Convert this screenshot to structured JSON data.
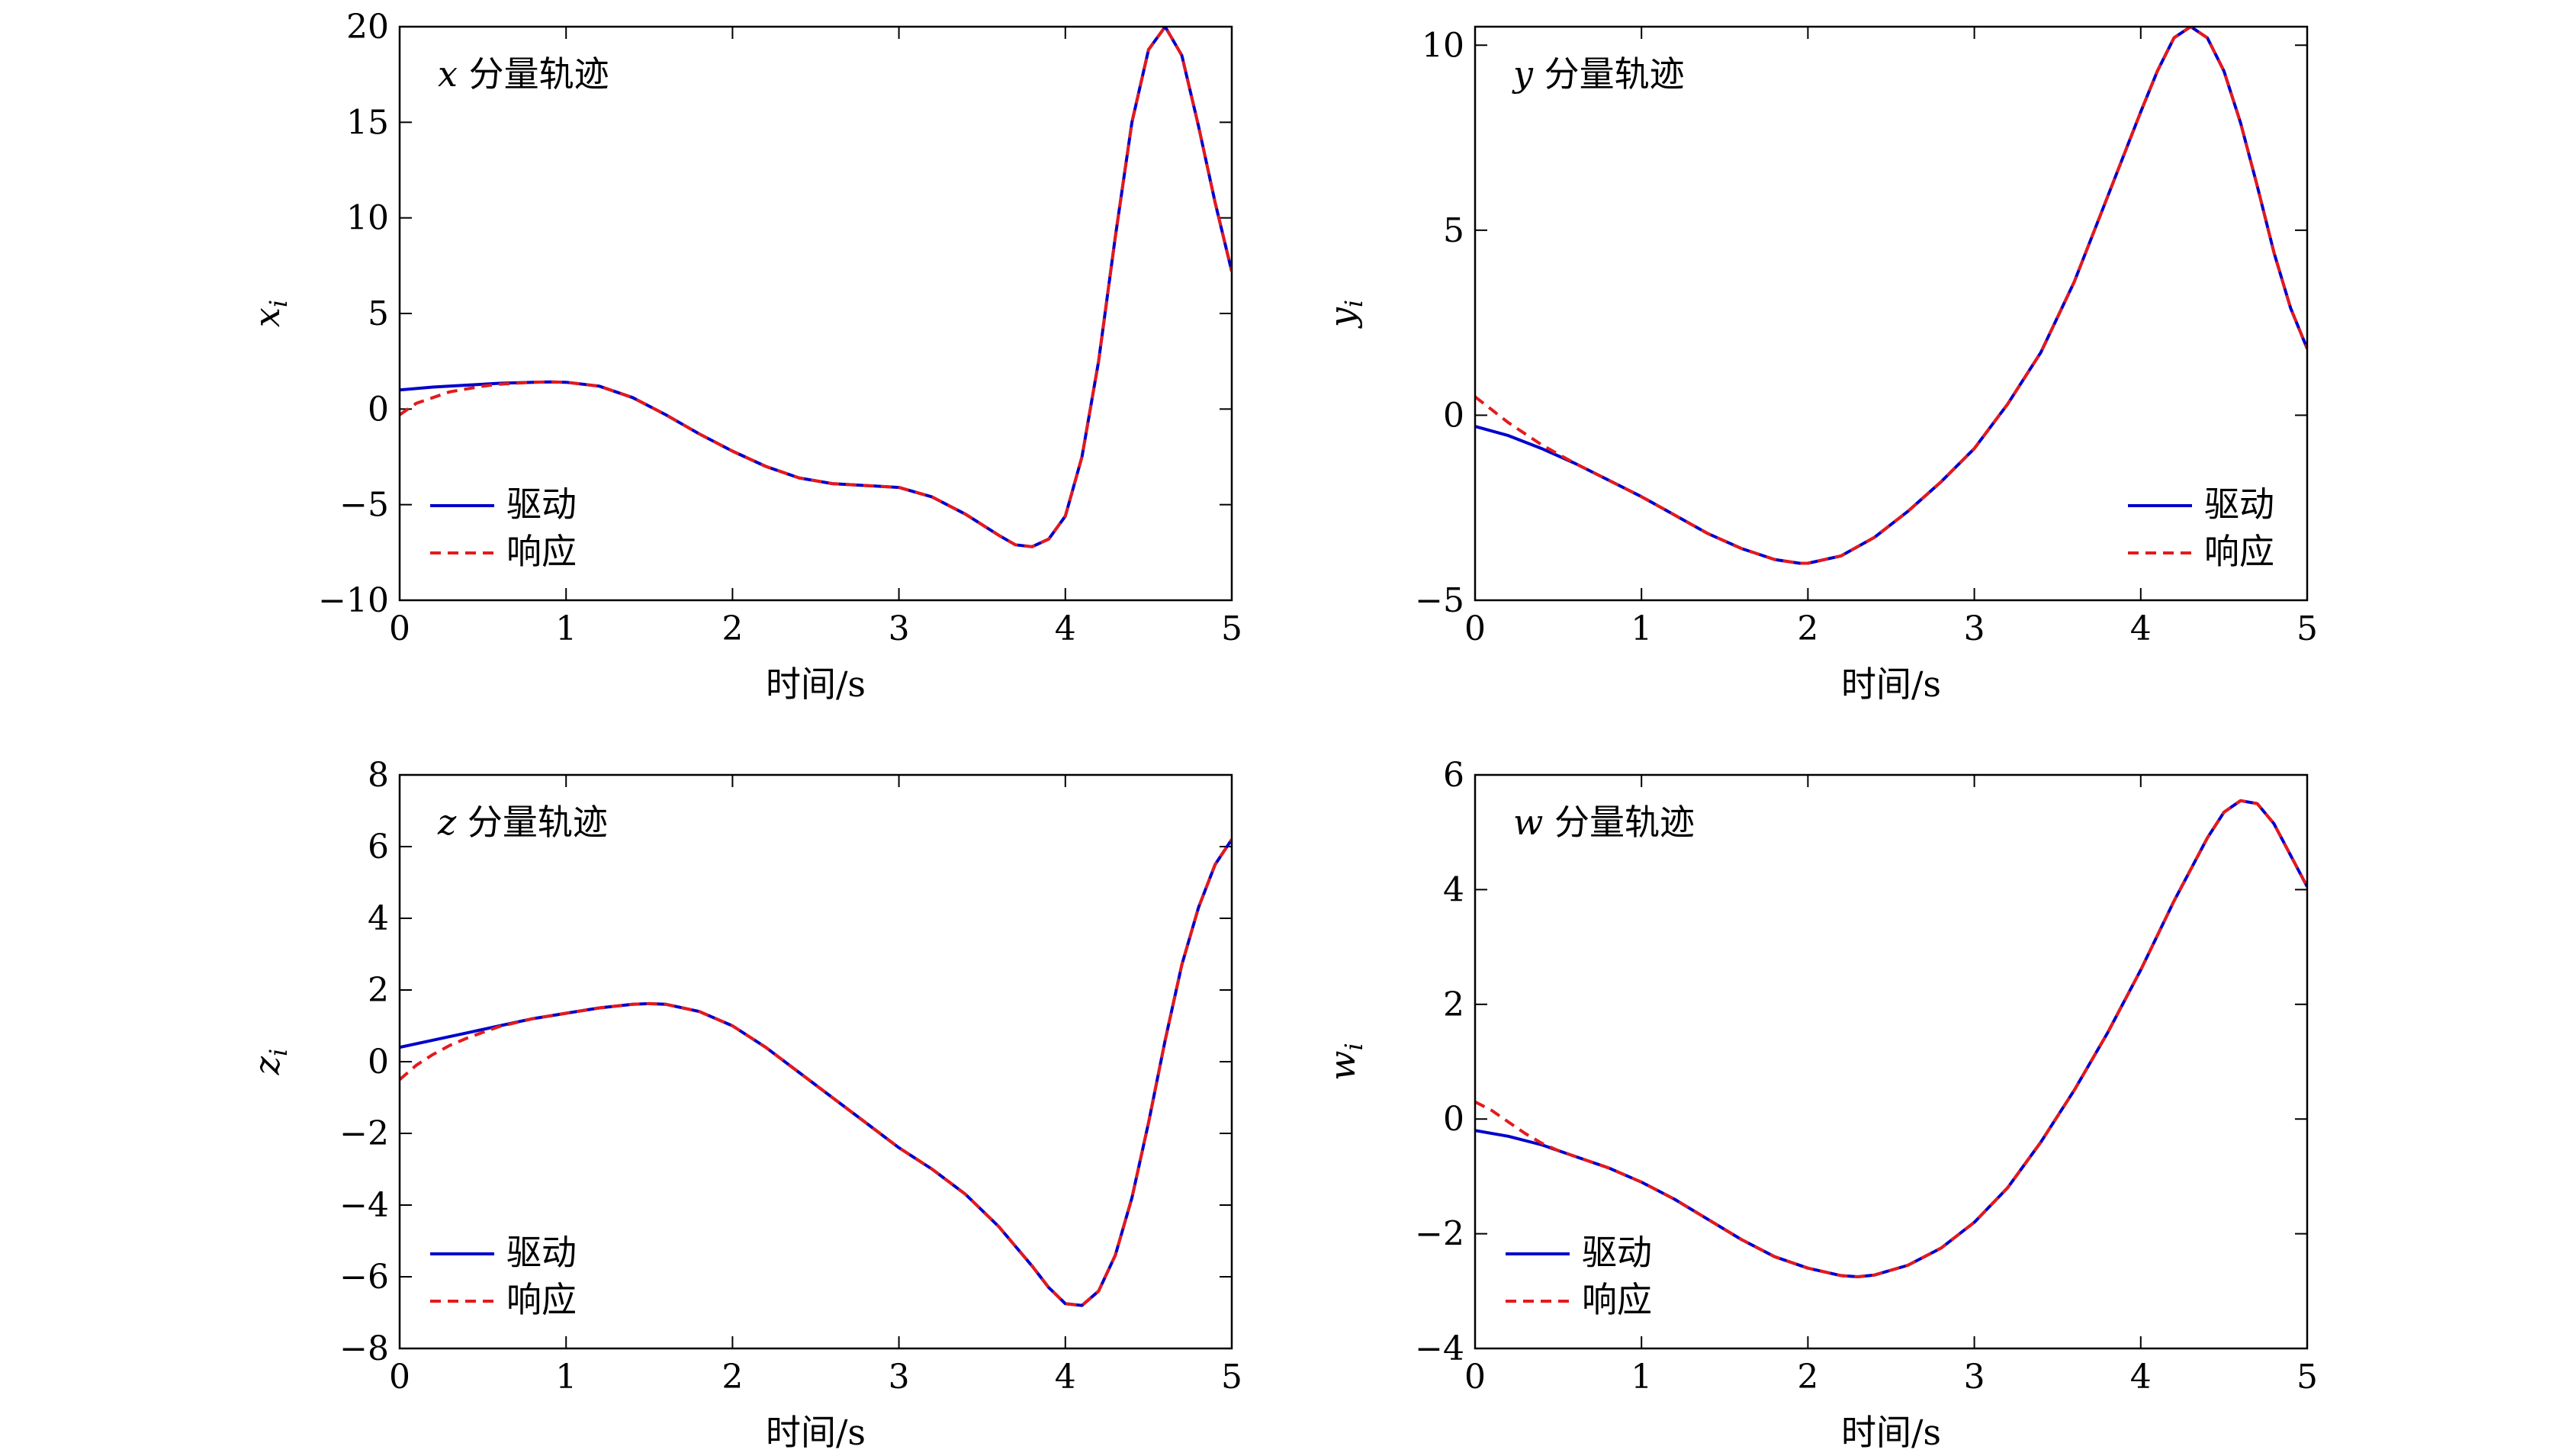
{
  "colors": {
    "drive": "#0000cc",
    "response": "#e41a1c",
    "axis": "#000000",
    "background": "#ffffff"
  },
  "legend": {
    "drive_label": "驱动",
    "response_label": "响应",
    "placement": "lower-left"
  },
  "chart_data": [
    {
      "type": "line",
      "title": "x 分量轨迹",
      "title_var": "x",
      "title_text": "分量轨迹",
      "xlabel": "时间/s",
      "ylabel": "x_i",
      "ylabel_var": "x",
      "ylabel_sub": "i",
      "xlim": [
        0,
        5
      ],
      "ylim": [
        -10,
        20
      ],
      "xticks": [
        0,
        1,
        2,
        3,
        4,
        5
      ],
      "xtick_labels": [
        "0",
        "1",
        "2",
        "3",
        "4",
        "5"
      ],
      "yticks": [
        -10,
        -5,
        0,
        5,
        10,
        15,
        20
      ],
      "ytick_labels": [
        "−10",
        "−5",
        "0",
        "5",
        "10",
        "15",
        "20"
      ],
      "legend_placement": "lower-left",
      "series": [
        {
          "name": "驱动",
          "style": "solid",
          "x": [
            0,
            0.2,
            0.4,
            0.6,
            0.8,
            0.9,
            1.0,
            1.2,
            1.4,
            1.6,
            1.8,
            2.0,
            2.2,
            2.4,
            2.6,
            2.8,
            3.0,
            3.2,
            3.4,
            3.6,
            3.7,
            3.8,
            3.9,
            4.0,
            4.1,
            4.2,
            4.3,
            4.4,
            4.5,
            4.6,
            4.7,
            4.8,
            4.9,
            5.0
          ],
          "y": [
            1.0,
            1.15,
            1.25,
            1.35,
            1.4,
            1.42,
            1.4,
            1.2,
            0.6,
            -0.3,
            -1.3,
            -2.2,
            -3.0,
            -3.6,
            -3.9,
            -4.0,
            -4.1,
            -4.6,
            -5.5,
            -6.6,
            -7.1,
            -7.2,
            -6.8,
            -5.6,
            -2.5,
            2.5,
            9.0,
            15.0,
            18.8,
            20.0,
            18.5,
            14.8,
            10.8,
            7.2
          ]
        },
        {
          "name": "响应",
          "style": "dashed",
          "x": [
            0,
            0.05,
            0.1,
            0.2,
            0.3,
            0.4,
            0.5,
            0.6,
            0.8,
            0.9,
            1.0,
            1.2,
            1.4,
            1.6,
            1.8,
            2.0,
            2.2,
            2.4,
            2.6,
            2.8,
            3.0,
            3.2,
            3.4,
            3.6,
            3.7,
            3.8,
            3.9,
            4.0,
            4.1,
            4.2,
            4.3,
            4.4,
            4.5,
            4.6,
            4.7,
            4.8,
            4.9,
            5.0
          ],
          "y": [
            -0.3,
            0.0,
            0.3,
            0.6,
            0.9,
            1.05,
            1.2,
            1.3,
            1.4,
            1.42,
            1.4,
            1.2,
            0.6,
            -0.3,
            -1.3,
            -2.2,
            -3.0,
            -3.6,
            -3.9,
            -4.0,
            -4.1,
            -4.6,
            -5.5,
            -6.6,
            -7.1,
            -7.2,
            -6.8,
            -5.6,
            -2.5,
            2.5,
            9.0,
            15.0,
            18.8,
            20.0,
            18.5,
            14.8,
            10.8,
            7.2
          ]
        }
      ]
    },
    {
      "type": "line",
      "title": "y 分量轨迹",
      "title_var": "y",
      "title_text": "分量轨迹",
      "xlabel": "时间/s",
      "ylabel": "y_i",
      "ylabel_var": "y",
      "ylabel_sub": "i",
      "xlim": [
        0,
        5
      ],
      "ylim": [
        -5,
        10.5
      ],
      "xticks": [
        0,
        1,
        2,
        3,
        4,
        5
      ],
      "xtick_labels": [
        "0",
        "1",
        "2",
        "3",
        "4",
        "5"
      ],
      "yticks": [
        -5,
        0,
        5,
        10
      ],
      "ytick_labels": [
        "−5",
        "0",
        "5",
        "10"
      ],
      "legend_placement": "lower-right",
      "series": [
        {
          "name": "驱动",
          "style": "solid",
          "x": [
            0,
            0.2,
            0.4,
            0.6,
            0.8,
            1.0,
            1.2,
            1.4,
            1.6,
            1.8,
            1.95,
            2.0,
            2.2,
            2.4,
            2.6,
            2.8,
            3.0,
            3.2,
            3.4,
            3.6,
            3.8,
            4.0,
            4.1,
            4.2,
            4.3,
            4.4,
            4.5,
            4.6,
            4.7,
            4.8,
            4.9,
            5.0
          ],
          "y": [
            -0.3,
            -0.55,
            -0.9,
            -1.3,
            -1.75,
            -2.2,
            -2.7,
            -3.2,
            -3.6,
            -3.9,
            -4.0,
            -4.0,
            -3.8,
            -3.3,
            -2.6,
            -1.8,
            -0.9,
            0.3,
            1.7,
            3.6,
            5.9,
            8.2,
            9.3,
            10.2,
            10.5,
            10.2,
            9.3,
            7.9,
            6.2,
            4.4,
            2.9,
            1.8
          ]
        },
        {
          "name": "响应",
          "style": "dashed",
          "x": [
            0,
            0.1,
            0.2,
            0.3,
            0.4,
            0.5,
            0.6,
            0.8,
            1.0,
            1.2,
            1.4,
            1.6,
            1.8,
            1.95,
            2.0,
            2.2,
            2.4,
            2.6,
            2.8,
            3.0,
            3.2,
            3.4,
            3.6,
            3.8,
            4.0,
            4.1,
            4.2,
            4.3,
            4.4,
            4.5,
            4.6,
            4.7,
            4.8,
            4.9,
            5.0
          ],
          "y": [
            0.5,
            0.15,
            -0.2,
            -0.5,
            -0.8,
            -1.05,
            -1.3,
            -1.75,
            -2.2,
            -2.7,
            -3.2,
            -3.6,
            -3.9,
            -4.0,
            -4.0,
            -3.8,
            -3.3,
            -2.6,
            -1.8,
            -0.9,
            0.3,
            1.7,
            3.6,
            5.9,
            8.2,
            9.3,
            10.2,
            10.5,
            10.2,
            9.3,
            7.9,
            6.2,
            4.4,
            2.9,
            1.8
          ]
        }
      ]
    },
    {
      "type": "line",
      "title": "z 分量轨迹",
      "title_var": "z",
      "title_text": "分量轨迹",
      "xlabel": "时间/s",
      "ylabel": "z_i",
      "ylabel_var": "z",
      "ylabel_sub": "i",
      "xlim": [
        0,
        5
      ],
      "ylim": [
        -8,
        8
      ],
      "xticks": [
        0,
        1,
        2,
        3,
        4,
        5
      ],
      "xtick_labels": [
        "0",
        "1",
        "2",
        "3",
        "4",
        "5"
      ],
      "yticks": [
        -8,
        -6,
        -4,
        -2,
        0,
        2,
        4,
        6,
        8
      ],
      "ytick_labels": [
        "−8",
        "−6",
        "−4",
        "−2",
        "0",
        "2",
        "4",
        "6",
        "8"
      ],
      "legend_placement": "lower-left",
      "series": [
        {
          "name": "驱动",
          "style": "solid",
          "x": [
            0,
            0.2,
            0.4,
            0.6,
            0.8,
            1.0,
            1.2,
            1.4,
            1.5,
            1.6,
            1.8,
            2.0,
            2.2,
            2.4,
            2.6,
            2.8,
            3.0,
            3.2,
            3.4,
            3.6,
            3.8,
            3.9,
            4.0,
            4.1,
            4.2,
            4.3,
            4.4,
            4.5,
            4.6,
            4.7,
            4.8,
            4.9,
            5.0
          ],
          "y": [
            0.4,
            0.6,
            0.8,
            1.0,
            1.2,
            1.35,
            1.5,
            1.6,
            1.62,
            1.6,
            1.4,
            1.0,
            0.4,
            -0.3,
            -1.0,
            -1.7,
            -2.4,
            -3.0,
            -3.7,
            -4.6,
            -5.7,
            -6.3,
            -6.75,
            -6.8,
            -6.4,
            -5.4,
            -3.8,
            -1.7,
            0.6,
            2.7,
            4.3,
            5.5,
            6.2
          ]
        },
        {
          "name": "响应",
          "style": "dashed",
          "x": [
            0,
            0.05,
            0.1,
            0.2,
            0.3,
            0.4,
            0.5,
            0.6,
            0.8,
            1.0,
            1.2,
            1.4,
            1.5,
            1.6,
            1.8,
            2.0,
            2.2,
            2.4,
            2.6,
            2.8,
            3.0,
            3.2,
            3.4,
            3.6,
            3.8,
            3.9,
            4.0,
            4.1,
            4.2,
            4.3,
            4.4,
            4.5,
            4.6,
            4.7,
            4.8,
            4.9,
            5.0
          ],
          "y": [
            -0.5,
            -0.3,
            -0.1,
            0.2,
            0.45,
            0.65,
            0.82,
            0.98,
            1.2,
            1.35,
            1.5,
            1.6,
            1.62,
            1.6,
            1.4,
            1.0,
            0.4,
            -0.3,
            -1.0,
            -1.7,
            -2.4,
            -3.0,
            -3.7,
            -4.6,
            -5.7,
            -6.3,
            -6.75,
            -6.8,
            -6.4,
            -5.4,
            -3.8,
            -1.7,
            0.6,
            2.7,
            4.3,
            5.5,
            6.2
          ]
        }
      ]
    },
    {
      "type": "line",
      "title": "w 分量轨迹",
      "title_var": "w",
      "title_text": "分量轨迹",
      "xlabel": "时间/s",
      "ylabel": "w_i",
      "ylabel_var": "w",
      "ylabel_sub": "i",
      "xlim": [
        0,
        5
      ],
      "ylim": [
        -4,
        6
      ],
      "xticks": [
        0,
        1,
        2,
        3,
        4,
        5
      ],
      "xtick_labels": [
        "0",
        "1",
        "2",
        "3",
        "4",
        "5"
      ],
      "yticks": [
        -4,
        -2,
        0,
        2,
        4,
        6
      ],
      "ytick_labels": [
        "−4",
        "−2",
        "0",
        "2",
        "4",
        "6"
      ],
      "legend_placement": "lower-left",
      "series": [
        {
          "name": "驱动",
          "style": "solid",
          "x": [
            0,
            0.2,
            0.4,
            0.6,
            0.8,
            1.0,
            1.2,
            1.4,
            1.6,
            1.8,
            2.0,
            2.2,
            2.3,
            2.4,
            2.6,
            2.8,
            3.0,
            3.2,
            3.4,
            3.6,
            3.8,
            4.0,
            4.2,
            4.4,
            4.5,
            4.6,
            4.7,
            4.8,
            4.9,
            5.0
          ],
          "y": [
            -0.2,
            -0.3,
            -0.45,
            -0.65,
            -0.85,
            -1.1,
            -1.4,
            -1.75,
            -2.1,
            -2.4,
            -2.6,
            -2.73,
            -2.75,
            -2.72,
            -2.55,
            -2.25,
            -1.8,
            -1.2,
            -0.4,
            0.5,
            1.5,
            2.6,
            3.8,
            4.9,
            5.35,
            5.55,
            5.5,
            5.15,
            4.6,
            4.05
          ]
        },
        {
          "name": "响应",
          "style": "dashed",
          "x": [
            0,
            0.1,
            0.2,
            0.3,
            0.4,
            0.5,
            0.6,
            0.8,
            1.0,
            1.2,
            1.4,
            1.6,
            1.8,
            2.0,
            2.2,
            2.3,
            2.4,
            2.6,
            2.8,
            3.0,
            3.2,
            3.4,
            3.6,
            3.8,
            4.0,
            4.2,
            4.4,
            4.5,
            4.6,
            4.7,
            4.8,
            4.9,
            5.0
          ],
          "y": [
            0.3,
            0.15,
            -0.05,
            -0.25,
            -0.42,
            -0.55,
            -0.65,
            -0.85,
            -1.1,
            -1.4,
            -1.75,
            -2.1,
            -2.4,
            -2.6,
            -2.73,
            -2.75,
            -2.72,
            -2.55,
            -2.25,
            -1.8,
            -1.2,
            -0.4,
            0.5,
            1.5,
            2.6,
            3.8,
            4.9,
            5.35,
            5.55,
            5.5,
            5.15,
            4.6,
            4.05
          ]
        }
      ]
    }
  ]
}
